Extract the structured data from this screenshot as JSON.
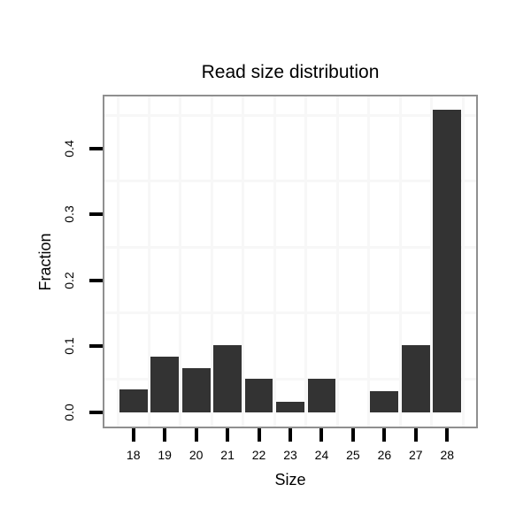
{
  "title": "Read size distribution",
  "colors": {
    "background": "#ffffff",
    "bar": "#333333",
    "panel_border": "#8f8f8f",
    "grid": "#f7f7f7",
    "tick": "#000000",
    "text": "#000000"
  },
  "chart_data": {
    "type": "bar",
    "title": "Read size distribution",
    "xlabel": "Size",
    "ylabel": "Fraction",
    "categories": [
      "18",
      "19",
      "20",
      "21",
      "22",
      "23",
      "24",
      "25",
      "26",
      "27",
      "28"
    ],
    "values": [
      0.034,
      0.084,
      0.067,
      0.101,
      0.051,
      0.016,
      0.051,
      0,
      0.032,
      0.101,
      0.459
    ],
    "yticks": [
      0.0,
      0.1,
      0.2,
      0.3,
      0.4
    ],
    "ytick_labels": [
      "0.0",
      "0.1",
      "0.2",
      "0.3",
      "0.4"
    ],
    "minor_gridlines_y": [
      0.05,
      0.15,
      0.25,
      0.35,
      0.45
    ],
    "ylim": [
      -0.023,
      0.48
    ],
    "grid": "minor-only, light gray, vertical lines at category boundaries",
    "legend": "none",
    "bar_color": "#333333"
  }
}
